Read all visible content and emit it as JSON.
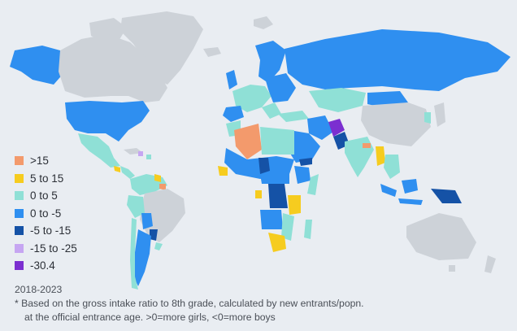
{
  "map": {
    "legend": [
      {
        "label": ">15",
        "color": "#f39a6c"
      },
      {
        "label": "5 to 15",
        "color": "#f6cc1f"
      },
      {
        "label": "0 to 5",
        "color": "#8fe0d6"
      },
      {
        "label": "0 to -5",
        "color": "#2f8ff0"
      },
      {
        "label": "-5 to -15",
        "color": "#1552a6"
      },
      {
        "label": "-15 to -25",
        "color": "#c6a6f2"
      },
      {
        "label": "-30.4",
        "color": "#7b2fd0"
      }
    ],
    "no_data_color": "#cdd2d8",
    "water_color": "#e9edf2",
    "period": "2018-2023",
    "footnote_line1": "* Based on the gross intake ratio to 8th grade, calculated by new entrants/popn.",
    "footnote_line2": "at the official entrance age. >0=more girls, <0=more boys"
  }
}
